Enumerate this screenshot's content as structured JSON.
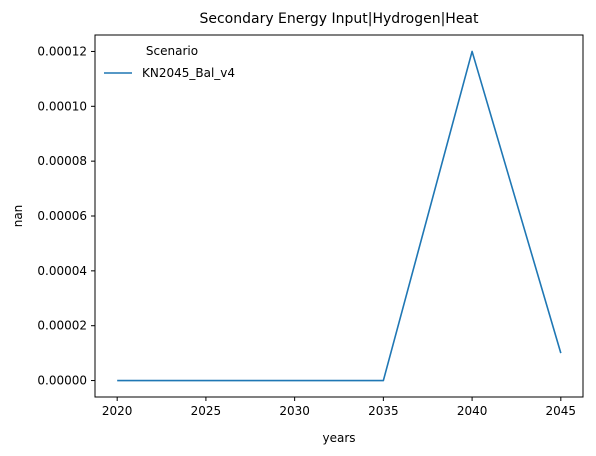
{
  "chart_data": {
    "type": "line",
    "title": "Secondary Energy Input|Hydrogen|Heat",
    "xlabel": "years",
    "ylabel": "nan",
    "xlim": [
      2018.75,
      2046.25
    ],
    "ylim": [
      -6e-06,
      0.000126
    ],
    "xticks": [
      2020,
      2025,
      2030,
      2035,
      2040,
      2045
    ],
    "yticks": [
      0,
      2e-05,
      4e-05,
      6e-05,
      8e-05,
      0.0001,
      0.00012
    ],
    "ytick_labels": [
      "0.00000",
      "0.00002",
      "0.00004",
      "0.00006",
      "0.00008",
      "0.00010",
      "0.00012"
    ],
    "grid": false,
    "legend": {
      "title": "Scenario",
      "position": "top-left"
    },
    "series": [
      {
        "name": "KN2045_Bal_v4",
        "color": "#1f77b4",
        "x": [
          2020,
          2025,
          2030,
          2035,
          2040,
          2045
        ],
        "y": [
          0,
          0,
          0,
          0,
          0.00012,
          1e-05
        ]
      }
    ]
  }
}
